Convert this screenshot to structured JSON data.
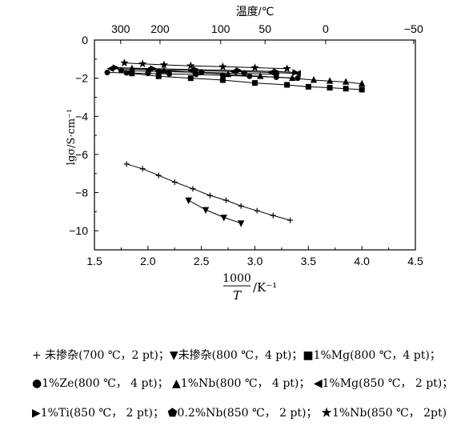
{
  "chart_data": {
    "type": "scatter",
    "x_axis": {
      "min": 1.5,
      "max": 4.5,
      "ticks": [
        "1.5",
        "2.0",
        "2.5",
        "3.0",
        "3.5",
        "4.0",
        "4.5"
      ],
      "label_numerator": "1000",
      "label_denominator": "T",
      "label_unit": "/K⁻¹"
    },
    "y_axis": {
      "min": -11,
      "max": 0,
      "ticks": [
        "0",
        "-2",
        "-4",
        "-6",
        "-8",
        "-10"
      ],
      "label": "lgσ/S·cm⁻¹"
    },
    "top_axis": {
      "label": "温度/℃",
      "ticks": [
        {
          "label": "300",
          "x": 1.745
        },
        {
          "label": "200",
          "x": 2.113
        },
        {
          "label": "100",
          "x": 2.68
        },
        {
          "label": "50",
          "x": 3.095
        },
        {
          "label": "0",
          "x": 3.661
        },
        {
          "label": "−50",
          "x": 4.484
        }
      ]
    },
    "series": [
      {
        "marker": "plus",
        "x": [
          1.8,
          1.95,
          2.1,
          2.25,
          2.42,
          2.58,
          2.73,
          2.87,
          3.02,
          3.17,
          3.33
        ],
        "y": [
          -6.5,
          -6.75,
          -7.1,
          -7.45,
          -7.8,
          -8.15,
          -8.4,
          -8.7,
          -8.95,
          -9.2,
          -9.45
        ]
      },
      {
        "marker": "triangle-down",
        "x": [
          2.38,
          2.54,
          2.71,
          2.87
        ],
        "y": [
          -8.4,
          -8.9,
          -9.3,
          -9.6
        ]
      },
      {
        "marker": "square",
        "x": [
          1.85,
          2.1,
          2.4,
          2.7,
          3.0,
          3.3,
          3.5,
          3.7,
          3.85,
          4.0
        ],
        "y": [
          -1.75,
          -1.9,
          -2.0,
          -2.1,
          -2.25,
          -2.35,
          -2.45,
          -2.5,
          -2.55,
          -2.6
        ]
      },
      {
        "marker": "circle",
        "x": [
          1.62,
          1.8,
          2.0,
          2.2,
          2.45,
          2.7,
          2.95,
          3.2,
          3.4
        ],
        "y": [
          -1.7,
          -1.72,
          -1.75,
          -1.78,
          -1.8,
          -1.85,
          -1.9,
          -1.95,
          -2.0
        ]
      },
      {
        "marker": "triangle-up",
        "x": [
          1.85,
          2.15,
          2.45,
          2.75,
          3.05,
          3.35,
          3.55,
          3.7,
          3.85,
          4.0
        ],
        "y": [
          -1.5,
          -1.6,
          -1.7,
          -1.8,
          -1.9,
          -2.0,
          -2.1,
          -2.15,
          -2.2,
          -2.3
        ]
      },
      {
        "marker": "triangle-left",
        "x": [
          1.65,
          2.0,
          2.4,
          2.8,
          3.15,
          3.4
        ],
        "y": [
          -1.5,
          -1.55,
          -1.6,
          -1.65,
          -1.7,
          -1.75
        ]
      },
      {
        "marker": "triangle-right",
        "x": [
          1.7,
          2.05,
          2.45,
          2.85,
          3.2,
          3.38
        ],
        "y": [
          -1.45,
          -1.5,
          -1.55,
          -1.6,
          -1.65,
          -1.7
        ]
      },
      {
        "marker": "pentagon",
        "x": [
          1.75,
          2.1,
          2.5,
          2.9,
          3.2
        ],
        "y": [
          -1.6,
          -1.65,
          -1.7,
          -1.75,
          -1.8
        ]
      },
      {
        "marker": "star",
        "x": [
          1.78,
          1.95,
          2.15,
          2.4,
          2.7,
          3.0,
          3.3
        ],
        "y": [
          -1.2,
          -1.25,
          -1.3,
          -1.35,
          -1.4,
          -1.45,
          -1.5
        ]
      }
    ]
  },
  "legend": {
    "rows": [
      "+ 未掺杂(700 ℃，2 pt)；▼未掺杂(800 ℃，4 pt)；■1%Mg(800 ℃，4 pt)；",
      "●1%Ze(800 ℃， 4 pt)； ▲1%Nb(800 ℃， 4 pt)； ◀1%Mg(850 ℃， 2 pt)；",
      "▶1%Ti(850 ℃， 2 pt)； ⬟0.2%Nb(850 ℃， 2 pt)； ★1%Nb(850 ℃， 2pt)"
    ]
  }
}
